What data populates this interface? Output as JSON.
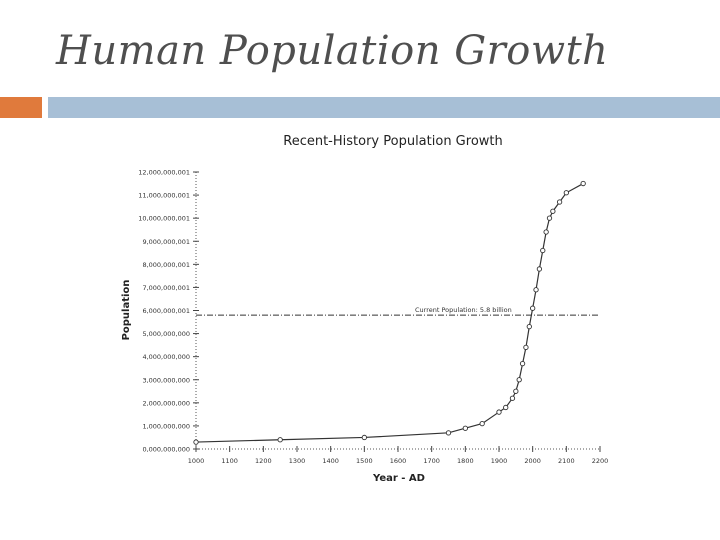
{
  "slide": {
    "title": "Human Population Growth"
  },
  "colors": {
    "accent_orange": "#e07a3c",
    "accent_blue": "#a7bfd6",
    "title_text": "#4f4f4f",
    "line": "#333333"
  },
  "chart_data": {
    "type": "line",
    "title": "Recent-History Population Growth",
    "xlabel": "Year - AD",
    "ylabel": "Population",
    "xlim": [
      1000,
      2200
    ],
    "ylim": [
      0,
      12000000000
    ],
    "x_ticks": [
      1000,
      1100,
      1200,
      1300,
      1400,
      1500,
      1600,
      1700,
      1800,
      1900,
      2000,
      2100,
      2200
    ],
    "y_ticks": [
      0,
      1000000000,
      2000000000,
      3000000000,
      4000000000,
      5000000000,
      6000000000,
      7000000000,
      8000000000,
      9000000000,
      10000000000,
      11000000000,
      12000000000
    ],
    "y_tick_labels": [
      "0,000,000,000",
      "1,000,000,000",
      "2,000,000,000",
      "3,000,000,000",
      "4,000,000,000",
      "5,000,000,000",
      "6,000,000,001",
      "7,000,000,001",
      "8,000,000,001",
      "9,000,000,001",
      "10,000,000,001",
      "11,000,000,001",
      "12,000,000,001"
    ],
    "reference_line": {
      "y": 5800000000,
      "label": "Current Population: 5.8 billion"
    },
    "series": [
      {
        "x": [
          1000,
          1250,
          1500,
          1750,
          1800,
          1850,
          1900,
          1920,
          1940,
          1950,
          1960,
          1970,
          1980,
          1990,
          2000,
          2010,
          2020,
          2030,
          2040,
          2050,
          2060,
          2080,
          2100,
          2150
        ],
        "y": [
          300000000,
          400000000,
          500000000,
          700000000,
          900000000,
          1100000000,
          1600000000,
          1800000000,
          2200000000,
          2500000000,
          3000000000,
          3700000000,
          4400000000,
          5300000000,
          6100000000,
          6900000000,
          7800000000,
          8600000000,
          9400000000,
          10000000000,
          10300000000,
          10700000000,
          11100000000,
          11500000000
        ]
      }
    ],
    "grid": false,
    "legend": "none"
  }
}
